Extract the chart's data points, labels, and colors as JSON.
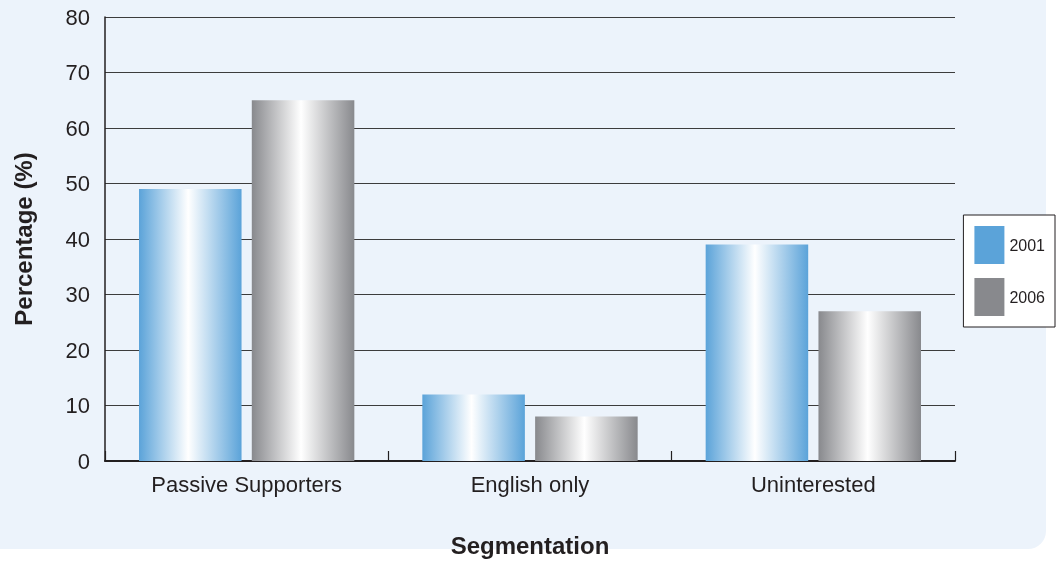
{
  "chart_data": {
    "type": "bar",
    "xlabel": "Segmentation",
    "ylabel": "Percentage (%)",
    "categories": [
      "Passive Supporters",
      "English only",
      "Uninterested"
    ],
    "series": [
      {
        "name": "2001",
        "color": "#5ba3d9",
        "values": [
          49,
          12,
          39
        ]
      },
      {
        "name": "2006",
        "color": "#88898d",
        "values": [
          65,
          8,
          27
        ]
      }
    ],
    "ylim": [
      0,
      80
    ],
    "yticks": [
      0,
      10,
      20,
      30,
      40,
      50,
      60,
      70,
      80
    ],
    "grid": "y",
    "legend": "right"
  }
}
